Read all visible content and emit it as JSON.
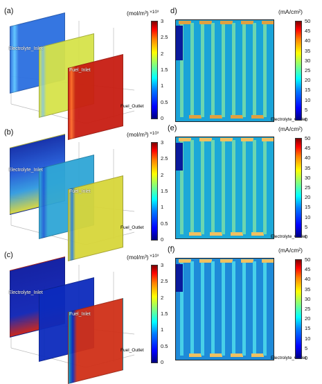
{
  "chart_data": [
    {
      "type": "heatmap",
      "panel": "(a)",
      "unit_label": "(mol/m³)",
      "multiplier": "×10³",
      "colorbar_ticks": [
        "3",
        "2.5",
        "2",
        "1.5",
        "1",
        "0.5",
        "0"
      ],
      "colorbar_range": [
        0,
        3
      ],
      "labels": [
        "Electrolyte_Inlet",
        "Fuel_Inlet",
        "Fuel_Outlet"
      ],
      "colors": [
        "#1f5fd6",
        "#b7d94a",
        "#c81d12"
      ]
    },
    {
      "type": "heatmap",
      "panel": "(b)",
      "unit_label": "(mol/m³)",
      "multiplier": "×10³",
      "colorbar_ticks": [
        "3",
        "2.5",
        "2",
        "1.5",
        "1",
        "0.5",
        "0"
      ],
      "colorbar_range": [
        0,
        3
      ],
      "labels": [
        "Electrolyte_Inlet",
        "Fuel_Inlet",
        "Fuel_Outlet"
      ],
      "colors": [
        "#1636b8",
        "#2fa6d6",
        "#d8d63a"
      ]
    },
    {
      "type": "heatmap",
      "panel": "(c)",
      "unit_label": "(mol/m³)",
      "multiplier": "×10³",
      "colorbar_ticks": [
        "3",
        "2.5",
        "2",
        "1.5",
        "1",
        "0.5",
        "0"
      ],
      "colorbar_range": [
        0,
        3
      ],
      "labels": [
        "Electrolyte_Inlet",
        "Fuel_Inlet",
        "Fuel_Outlet"
      ],
      "colors": [
        "#0a1aa8",
        "#0c2bbd",
        "#14a0b0"
      ]
    },
    {
      "type": "heatmap",
      "panel": "d)",
      "unit_label": "(mA/cm²)",
      "colorbar_ticks": [
        "50",
        "45",
        "40",
        "35",
        "30",
        "25",
        "20",
        "15",
        "10",
        "5",
        "0"
      ],
      "colorbar_range": [
        0,
        50
      ],
      "labels": [
        "Electrolyte_Outlet"
      ]
    },
    {
      "type": "heatmap",
      "panel": "(e)",
      "unit_label": "(mA/cm²)",
      "colorbar_ticks": [
        "50",
        "45",
        "40",
        "35",
        "30",
        "25",
        "20",
        "15",
        "10",
        "5",
        "0"
      ],
      "colorbar_range": [
        0,
        50
      ],
      "labels": [
        "Electrolyte_Outlet"
      ]
    },
    {
      "type": "heatmap",
      "panel": "(f)",
      "unit_label": "(mA/cm²)",
      "colorbar_ticks": [
        "50",
        "45",
        "40",
        "35",
        "30",
        "25",
        "20",
        "15",
        "10",
        "5",
        "0"
      ],
      "colorbar_range": [
        0,
        50
      ],
      "labels": [
        "Electrolyte_Outlet"
      ]
    }
  ]
}
